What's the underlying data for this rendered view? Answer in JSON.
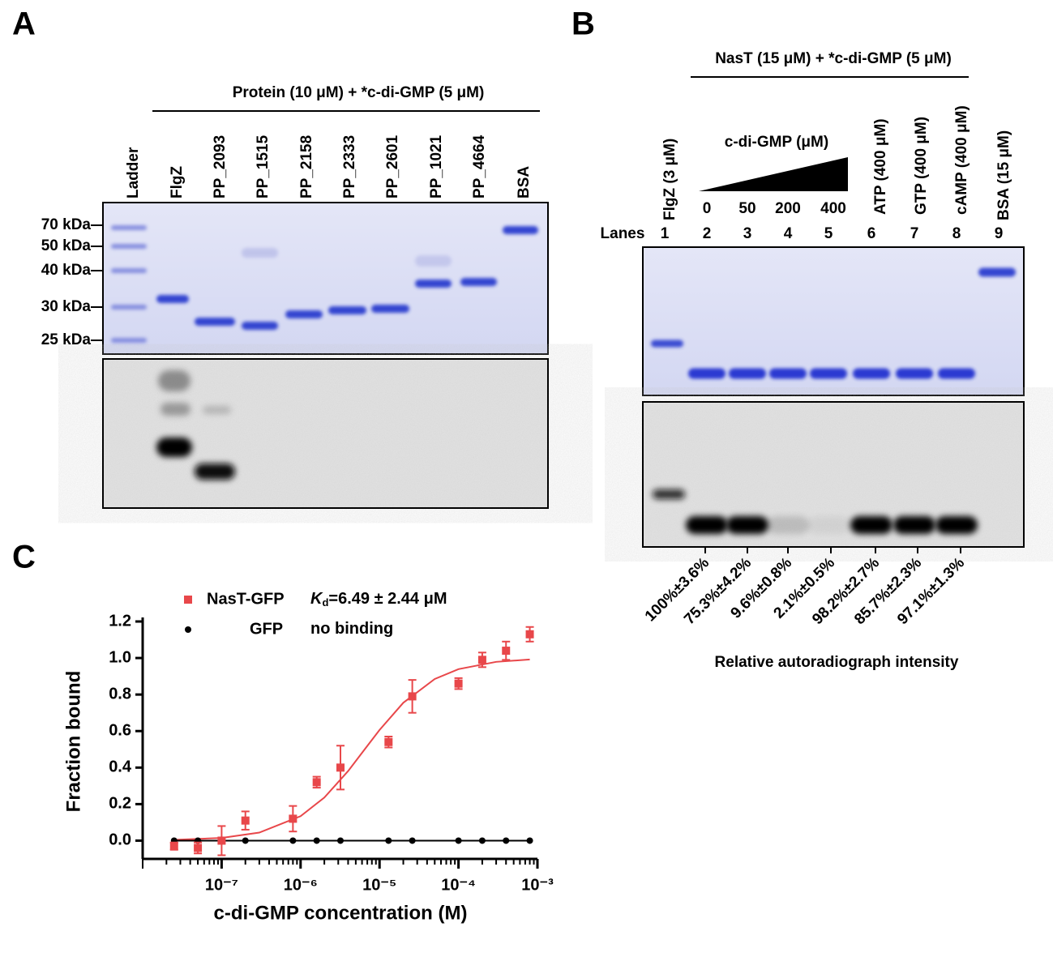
{
  "panels": {
    "a": "A",
    "b": "B",
    "c": "C"
  },
  "gel_a": {
    "header": "Protein (10 μM) + *c-di-GMP (5 μM)",
    "lanes": [
      "Ladder",
      "FlgZ",
      "PP_2093",
      "PP_1515",
      "PP_2158",
      "PP_2333",
      "PP_2601",
      "PP_1021",
      "PP_4664",
      "BSA"
    ],
    "markers": [
      "70 kDa",
      "50 kDa",
      "40 kDa",
      "30 kDa",
      "25 kDa"
    ]
  },
  "gel_b": {
    "header": "NasT (15 μM) + *c-di-GMP (5 μM)",
    "lane_labels": [
      "FlgZ (3 μM)",
      "ATP (400 μM)",
      "GTP (400 μM)",
      "cAMP (400 μM)",
      "BSA (15 μM)"
    ],
    "gradient_label": "c-di-GMP (μM)",
    "concentrations": [
      "0",
      "50",
      "200",
      "400"
    ],
    "lanes_label": "Lanes",
    "lane_numbers": [
      "1",
      "2",
      "3",
      "4",
      "5",
      "6",
      "7",
      "8",
      "9"
    ],
    "intensities": [
      "100%±3.6%",
      "75.3%±4.2%",
      "9.6%±0.8%",
      "2.1%±0.5%",
      "98.2%±2.7%",
      "85.7%±2.3%",
      "97.1%±1.3%"
    ],
    "intensity_label": "Relative autoradiograph intensity"
  },
  "chart_data": {
    "type": "scatter",
    "x_label": "c-di-GMP concentration (M)",
    "y_label": "Fraction bound",
    "xscale": "log",
    "xlim": [
      1e-08,
      0.001
    ],
    "xticks": [
      {
        "value": 1e-07,
        "label": "10⁻⁷"
      },
      {
        "value": 1e-06,
        "label": "10⁻⁶"
      },
      {
        "value": 1e-05,
        "label": "10⁻⁵"
      },
      {
        "value": 0.0001,
        "label": "10⁻⁴"
      },
      {
        "value": 0.001,
        "label": "10⁻³"
      }
    ],
    "ylim": [
      -0.1,
      1.2
    ],
    "yticks": [
      {
        "value": 0,
        "label": "0.0"
      },
      0.2,
      0.4,
      0.6,
      0.8,
      {
        "value": 1,
        "label": "1.0"
      },
      1.2
    ],
    "x": [
      2.5e-08,
      5e-08,
      1e-07,
      2e-07,
      8e-07,
      1.6e-06,
      3.2e-06,
      1.3e-05,
      2.6e-05,
      0.0001,
      0.0002,
      0.0004,
      0.0008
    ],
    "series": [
      {
        "name": "NasT-GFP",
        "color": "#e8474a",
        "marker": "square",
        "values": [
          -0.03,
          -0.04,
          0.0,
          0.11,
          0.12,
          0.32,
          0.4,
          0.54,
          0.79,
          0.86,
          0.99,
          1.04,
          1.13
        ],
        "errors": [
          0.02,
          0.03,
          0.08,
          0.05,
          0.07,
          0.03,
          0.12,
          0.03,
          0.09,
          0.03,
          0.04,
          0.05,
          0.04
        ]
      },
      {
        "name": "GFP",
        "color": "#000000",
        "marker": "circle",
        "values": [
          0,
          0,
          0,
          0,
          0,
          0,
          0,
          0,
          0,
          0,
          0,
          0,
          0
        ]
      }
    ],
    "legend_notes": [
      [
        "K",
        "d",
        "=6.49 ± 2.44 μM"
      ],
      [
        "no binding"
      ]
    ],
    "fit": {
      "color": "#e8474a",
      "x": [
        2.5e-08,
        1e-07,
        3e-07,
        1e-06,
        2e-06,
        4e-06,
        6.49e-06,
        1e-05,
        2e-05,
        5e-05,
        0.0001,
        0.0003,
        0.0008
      ],
      "values": [
        0.004,
        0.015,
        0.044,
        0.134,
        0.236,
        0.381,
        0.5,
        0.606,
        0.755,
        0.885,
        0.939,
        0.979,
        0.992
      ]
    }
  }
}
